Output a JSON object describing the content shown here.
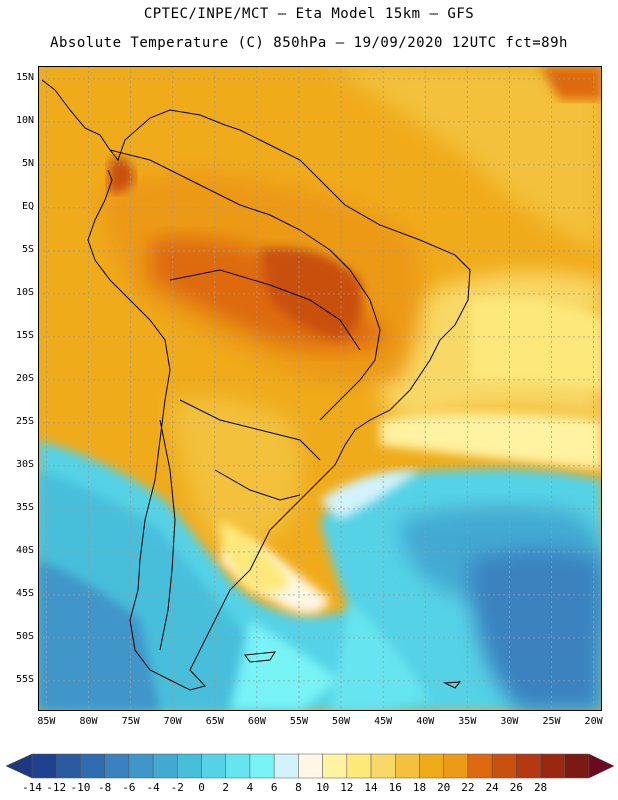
{
  "header": {
    "line1": "CPTEC/INPE/MCT –  Eta Model 15km – GFS",
    "line2": "Absolute Temperature (C) 850hPa – 19/09/2020 12UTC fct=89h"
  },
  "axes": {
    "lat_labels": [
      "15N",
      "10N",
      "5N",
      "EQ",
      "5S",
      "10S",
      "15S",
      "20S",
      "25S",
      "30S",
      "35S",
      "40S",
      "45S",
      "50S",
      "55S"
    ],
    "lon_labels": [
      "85W",
      "80W",
      "75W",
      "70W",
      "65W",
      "60W",
      "55W",
      "50W",
      "45W",
      "40W",
      "35W",
      "30W",
      "25W",
      "20W"
    ],
    "lat_range": [
      16.5,
      -58.5
    ],
    "lon_range": [
      -86,
      -19
    ]
  },
  "colorbar": {
    "labels": [
      "-14",
      "-12",
      "-10",
      "-8",
      "-6",
      "-4",
      "-2",
      "0",
      "2",
      "4",
      "6",
      "8",
      "10",
      "12",
      "14",
      "16",
      "18",
      "20",
      "22",
      "24",
      "26",
      "28"
    ],
    "colors": [
      "#1e4290",
      "#2a5aa0",
      "#2f6cb0",
      "#3a82bf",
      "#3f96c9",
      "#42a9d2",
      "#47bfdb",
      "#55d2e6",
      "#66e4ef",
      "#78f3f6",
      "#d3f3fb",
      "#fff8e6",
      "#fff2a0",
      "#fce97a",
      "#f8d866",
      "#f3c13b",
      "#f0ab1b",
      "#ec9a18",
      "#de6a10",
      "#c9500f",
      "#b53810",
      "#9a2810",
      "#7a1a12"
    ],
    "left_arrow_color": "#1e3880",
    "right_arrow_color": "#6a0a20"
  }
}
